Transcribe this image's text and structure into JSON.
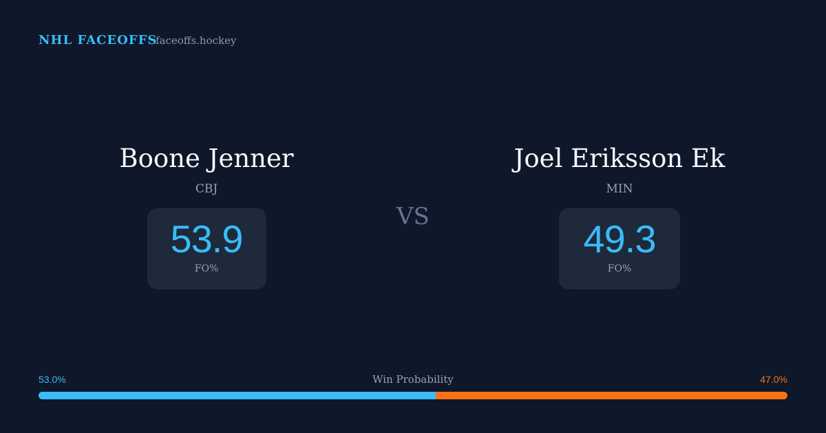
{
  "header": {
    "title": "NHL FACEOFFS",
    "site": "faceoffs.hockey"
  },
  "players": [
    {
      "name": "Boone Jenner",
      "team": "CBJ",
      "fo_pct": 53.9,
      "fo_label": "FO%"
    },
    {
      "name": "Joel Eriksson Ek",
      "team": "MIN",
      "fo_pct": 49.3,
      "fo_label": "FO%"
    }
  ],
  "versus": "VS",
  "win_probability": {
    "label": "Win Probability",
    "home": {
      "value": 53.0,
      "label": "53.0%",
      "color": "#38bdf8"
    },
    "away": {
      "value": 47.0,
      "label": "47.0%",
      "color": "#f97316"
    }
  }
}
